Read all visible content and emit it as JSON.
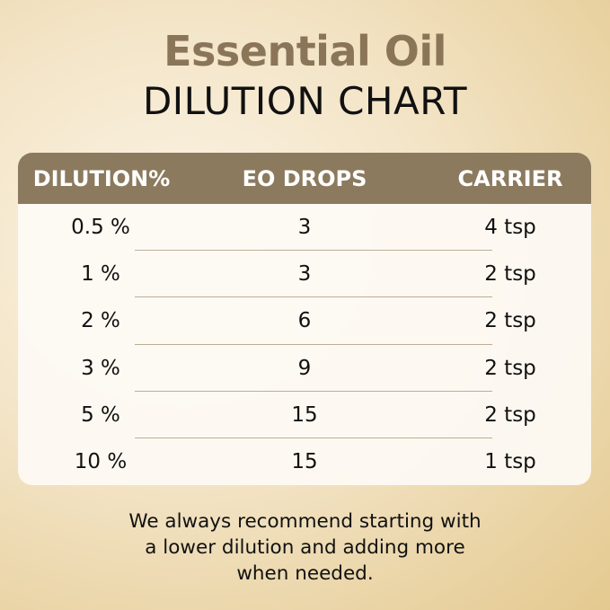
{
  "title": {
    "line1": "Essential Oil",
    "line2": "DILUTION CHART"
  },
  "table": {
    "headers": [
      "DILUTION%",
      "EO DROPS",
      "CARRIER"
    ],
    "rows": [
      [
        "0.5 %",
        "3",
        "4 tsp"
      ],
      [
        "1 %",
        "3",
        "2 tsp"
      ],
      [
        "2 %",
        "6",
        "2 tsp"
      ],
      [
        "3 %",
        "9",
        "2 tsp"
      ],
      [
        "5 %",
        "15",
        "2 tsp"
      ],
      [
        "10 %",
        "15",
        "1 tsp"
      ]
    ]
  },
  "footer": {
    "lines": [
      "We always recommend starting with",
      "a lower dilution and adding more",
      "when needed."
    ]
  },
  "colors": {
    "header": "#8c7a5e",
    "title_accent": "#8a7558"
  }
}
